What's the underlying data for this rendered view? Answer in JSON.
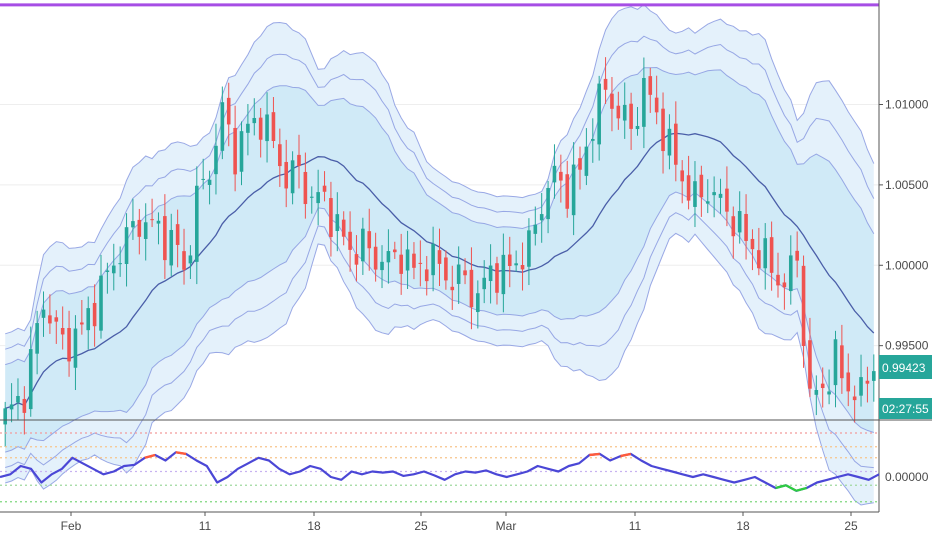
{
  "chart_data": {
    "type": "candlestick",
    "title": "",
    "xaxis": {
      "labels": [
        {
          "date": "Feb",
          "label": "Feb"
        },
        {
          "date": "Feb 11",
          "label": "11"
        },
        {
          "date": "Feb 18",
          "label": "18"
        },
        {
          "date": "Feb 25",
          "label": "25"
        },
        {
          "date": "Mar",
          "label": "Mar"
        },
        {
          "date": "Mar 11",
          "label": "11"
        },
        {
          "date": "Mar 18",
          "label": "18"
        },
        {
          "date": "Mar 25",
          "label": "25"
        }
      ]
    },
    "price_axis": {
      "ylim": [
        0.9905,
        1.0165
      ],
      "ticks": [
        {
          "value": 1.01,
          "label": "1.01000"
        },
        {
          "value": 1.005,
          "label": "1.00500"
        },
        {
          "value": 1.0,
          "label": "1.00000"
        },
        {
          "value": 0.995,
          "label": "0.99500"
        }
      ]
    },
    "last_price": {
      "value": 0.99423,
      "label": "0.99423",
      "countdown": "02:27:55",
      "color": "#26a69a"
    },
    "resistance_line": {
      "value": 1.0162,
      "color": "#a64ee5"
    },
    "close_path": [
      [
        0,
        0.9905
      ],
      [
        3,
        0.9921
      ],
      [
        6,
        0.9978
      ],
      [
        9,
        0.995
      ],
      [
        12,
        0.996
      ],
      [
        15,
        0.9985
      ],
      [
        18,
        1.001
      ],
      [
        21,
        1.0028
      ],
      [
        24,
        1.0022
      ],
      [
        27,
        1.001
      ],
      [
        28,
        0.9996
      ],
      [
        30,
        1.004
      ],
      [
        32,
        1.006
      ],
      [
        34,
        1.0095
      ],
      [
        36,
        1.007
      ],
      [
        38,
        1.0085
      ],
      [
        40,
        1.0092
      ],
      [
        42,
        1.0075
      ],
      [
        44,
        1.0055
      ],
      [
        46,
        1.0058
      ],
      [
        48,
        1.004
      ],
      [
        50,
        1.0042
      ],
      [
        52,
        1.0022
      ],
      [
        54,
        1.001
      ],
      [
        56,
        1.0012
      ],
      [
        58,
        1.0005
      ],
      [
        60,
        1.0002
      ],
      [
        62,
        1.0008
      ],
      [
        64,
        0.9996
      ],
      [
        66,
        1.0003
      ],
      [
        68,
        1.0
      ],
      [
        70,
        0.999
      ],
      [
        72,
        0.9992
      ],
      [
        74,
        0.9978
      ],
      [
        76,
        0.9998
      ],
      [
        78,
        0.9995
      ],
      [
        80,
        1.0003
      ],
      [
        82,
        1.001
      ],
      [
        84,
        1.004
      ],
      [
        86,
        1.0055
      ],
      [
        88,
        1.0048
      ],
      [
        90,
        1.0058
      ],
      [
        92,
        1.009
      ],
      [
        94,
        1.011
      ],
      [
        96,
        1.0095
      ],
      [
        98,
        1.0085
      ],
      [
        100,
        1.011
      ],
      [
        102,
        1.0095
      ],
      [
        104,
        1.0072
      ],
      [
        106,
        1.0055
      ],
      [
        108,
        1.004
      ],
      [
        110,
        1.0048
      ],
      [
        112,
        1.0038
      ],
      [
        114,
        1.003
      ],
      [
        116,
        1.0015
      ],
      [
        118,
        1.0008
      ],
      [
        120,
        0.9998
      ],
      [
        122,
        0.9988
      ],
      [
        124,
        1.0005
      ],
      [
        126,
        0.9915
      ],
      [
        128,
        0.9925
      ],
      [
        130,
        0.994
      ],
      [
        132,
        0.9925
      ],
      [
        134,
        0.9918
      ],
      [
        136,
        0.9942
      ]
    ],
    "basis_band_ranges": [
      {
        "name": "basis",
        "color": "#4a5ea8"
      },
      {
        "name": "inner band",
        "color": "#8a9ae0"
      },
      {
        "name": "outer band",
        "color": "#8a9ae0"
      }
    ],
    "oscillator": {
      "ylim": [
        -0.6,
        1.0
      ],
      "ticks": [
        {
          "value": 0.0,
          "label": "0.00000"
        }
      ],
      "levels": [
        {
          "value": 0.8,
          "color": "#f29b9b"
        },
        {
          "value": 0.55,
          "color": "#f7c48a"
        },
        {
          "value": 0.35,
          "color": "#f7c48a"
        },
        {
          "value": 0.1,
          "color": "#c8b2f0"
        },
        {
          "value": -0.15,
          "color": "#9fd99f"
        },
        {
          "value": -0.45,
          "color": "#7fd77f"
        }
      ],
      "line_color": "#4b47d6",
      "overbought_color": "#ff5b3a",
      "oversold_color": "#2ecc40",
      "values": [
        0.0,
        0.05,
        0.2,
        0.15,
        -0.1,
        0.05,
        0.15,
        0.35,
        0.25,
        0.15,
        0.05,
        0.1,
        0.2,
        0.22,
        0.35,
        0.4,
        0.3,
        0.45,
        0.42,
        0.3,
        0.2,
        -0.1,
        0.0,
        0.15,
        0.25,
        0.35,
        0.3,
        0.15,
        0.05,
        0.1,
        0.2,
        0.15,
        0.0,
        -0.05,
        0.1,
        0.05,
        0.1,
        0.08,
        0.1,
        0.02,
        0.05,
        0.1,
        0.03,
        -0.05,
        0.05,
        0.1,
        0.08,
        0.12,
        0.05,
        0.0,
        0.05,
        0.1,
        0.2,
        0.15,
        0.1,
        0.2,
        0.25,
        0.4,
        0.42,
        0.3,
        0.38,
        0.42,
        0.3,
        0.2,
        0.15,
        0.1,
        0.05,
        0.0,
        0.05,
        0.0,
        -0.05,
        -0.1,
        -0.05,
        0.0,
        -0.1,
        -0.2,
        -0.15,
        -0.25,
        -0.2,
        -0.1,
        -0.05,
        0.0,
        0.05,
        0.0,
        -0.05,
        0.05
      ]
    },
    "colors": {
      "up": "#26a69a",
      "down": "#ef5350",
      "band_fill": "#bfe4f4"
    }
  }
}
